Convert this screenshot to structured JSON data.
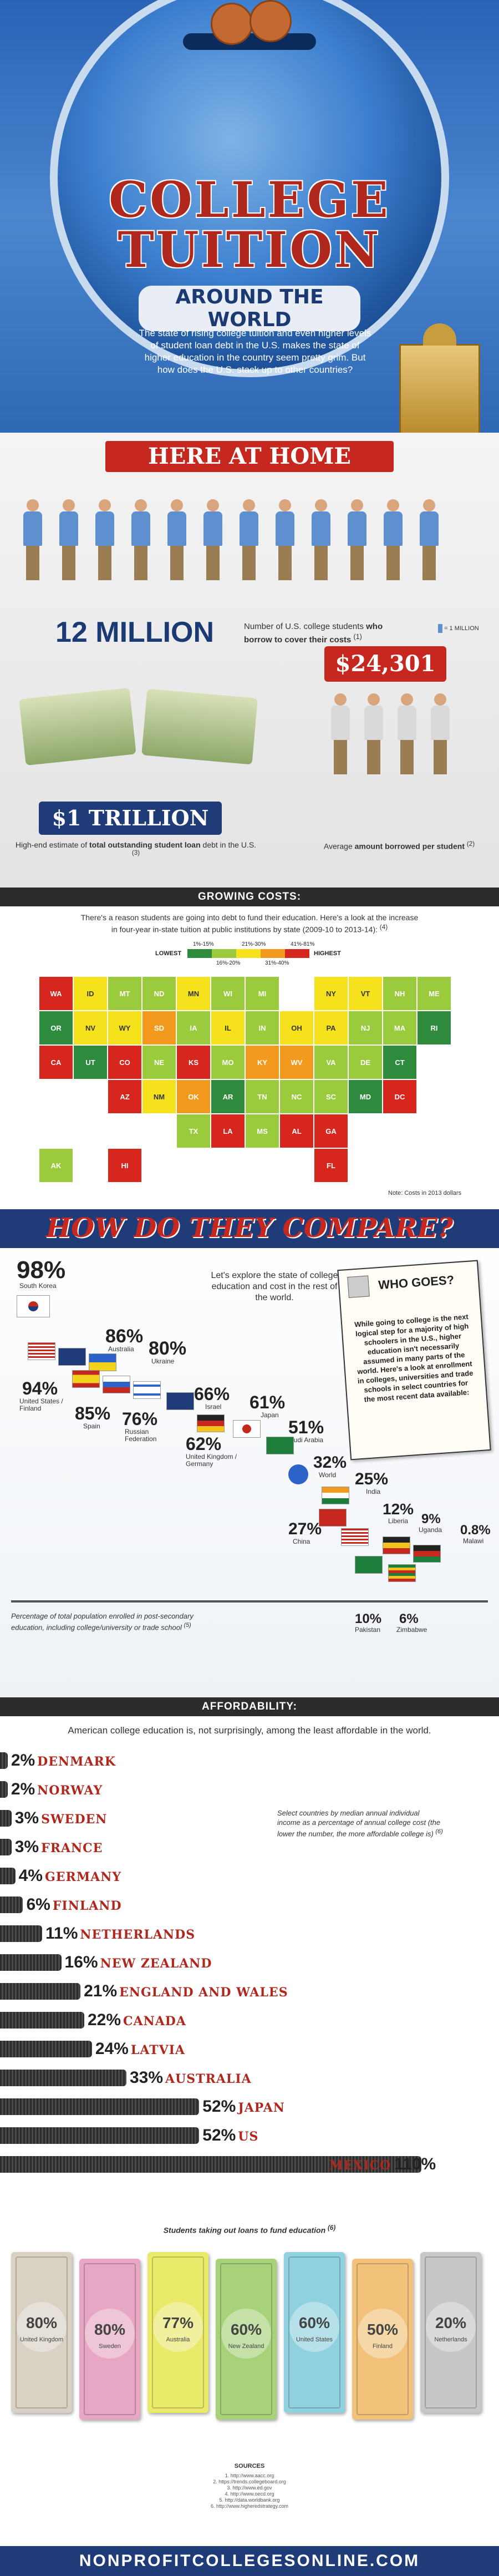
{
  "header": {
    "title_line1": "COLLEGE",
    "title_line2": "TUITION",
    "title_line3": "AROUND THE WORLD",
    "intro": "The state of rising college tuition and even higher levels of student loan debt in the U.S. makes the state of higher education in the country seem pretty grim. But how does the U.S. stack up to other countries?"
  },
  "home": {
    "banner": "HERE AT HOME",
    "students_value": "12 MILLION",
    "students_desc_pre": "Number of U.S. college students ",
    "students_desc_bold": "who borrow to cover their costs",
    "students_note": "(1)",
    "legend": "= 1 MILLION",
    "avg_value": "$24,301",
    "avg_desc_pre": "Average ",
    "avg_desc_bold": "amount borrowed per student",
    "avg_note": "(2)",
    "debt_value": "$1 TRILLION",
    "debt_desc_pre": "High-end estimate of ",
    "debt_desc_bold": "total outstanding student loan",
    "debt_desc_post": " debt in the U.S.",
    "debt_note": "(3)"
  },
  "growing": {
    "heading": "GROWING COSTS:",
    "intro": "There's a reason students are going into debt to fund their education. Here's a look at the increase in four-year in-state tuition at public institutions by state (2009-10 to 2013-14):",
    "intro_note": "(4)",
    "legend_lowest": "LOWEST",
    "legend_highest": "HIGHEST",
    "legend_top": [
      "1%-15%",
      "21%-30%",
      "41%-81%"
    ],
    "legend_bottom": [
      "16%-20%",
      "31%-40%"
    ],
    "legend_colors": [
      "#2e8b3e",
      "#9acb3c",
      "#f5e21c",
      "#f39a1e",
      "#d7261e"
    ],
    "note": "Note: Costs in 2013 dollars",
    "states": [
      "WA",
      "OR",
      "CA",
      "NV",
      "ID",
      "MT",
      "WY",
      "UT",
      "AZ",
      "CO",
      "NM",
      "ND",
      "SD",
      "NE",
      "KS",
      "OK",
      "TX",
      "MN",
      "IA",
      "MO",
      "AR",
      "LA",
      "WI",
      "IL",
      "MI",
      "IN",
      "OH",
      "KY",
      "TN",
      "MS",
      "AL",
      "GA",
      "FL",
      "SC",
      "NC",
      "VA",
      "WV",
      "PA",
      "NY",
      "VT",
      "NH",
      "ME",
      "MA",
      "RI",
      "CT",
      "NJ",
      "DE",
      "MD",
      "DC",
      "AK",
      "HI"
    ]
  },
  "compare": {
    "heading": "HOW DO THEY COMPARE?",
    "intro": "Let's explore the state of college education and cost in the rest of the world.",
    "who_goes_title": "WHO GOES?",
    "who_goes_text": "While going to college is the next logical step for a majority of high schoolers in the U.S., higher education isn't necessarily assumed in many parts of the world. Here's a look at enrollment in colleges, universities and trade schools in select countries for the most recent data available:",
    "countries": [
      {
        "pct": "98%",
        "name": "South Korea"
      },
      {
        "pct": "86%",
        "name": "Australia"
      },
      {
        "pct": "80%",
        "name": "Ukraine"
      },
      {
        "pct": "94%",
        "name": "United States / Finland"
      },
      {
        "pct": "85%",
        "name": "Spain"
      },
      {
        "pct": "76%",
        "name": "Russian Federation"
      },
      {
        "pct": "66%",
        "name": "Israel"
      },
      {
        "pct": "62%",
        "name": "United Kingdom / Germany"
      },
      {
        "pct": "61%",
        "name": "Japan"
      },
      {
        "pct": "51%",
        "name": "Saudi Arabia"
      },
      {
        "pct": "32%",
        "name": "World"
      },
      {
        "pct": "25%",
        "name": "India"
      },
      {
        "pct": "27%",
        "name": "China"
      },
      {
        "pct": "12%",
        "name": "Liberia"
      },
      {
        "pct": "9%",
        "name": "Uganda"
      },
      {
        "pct": "0.8%",
        "name": "Malawi"
      },
      {
        "pct": "10%",
        "name": "Pakistan"
      },
      {
        "pct": "6%",
        "name": "Zimbabwe"
      }
    ],
    "footnote": "Percentage of total population enrolled in post-secondary education, including college/university or trade school",
    "footnote_note": "(5)"
  },
  "afford": {
    "heading": "AFFORDABILITY:",
    "intro": "American college education is, not surprisingly, among the least affordable in the world.",
    "note": "Select countries by median annual individual income as a percentage of annual college cost (the lower the number, the more affordable college is)",
    "note_ref": "(6)",
    "rows": [
      {
        "pct": "2%",
        "country": "DENMARK"
      },
      {
        "pct": "2%",
        "country": "NORWAY"
      },
      {
        "pct": "3%",
        "country": "SWEDEN"
      },
      {
        "pct": "3%",
        "country": "FRANCE"
      },
      {
        "pct": "4%",
        "country": "GERMANY"
      },
      {
        "pct": "6%",
        "country": "FINLAND"
      },
      {
        "pct": "11%",
        "country": "NETHERLANDS"
      },
      {
        "pct": "16%",
        "country": "NEW ZEALAND"
      },
      {
        "pct": "21%",
        "country": "ENGLAND AND WALES"
      },
      {
        "pct": "22%",
        "country": "CANADA"
      },
      {
        "pct": "24%",
        "country": "LATVIA"
      },
      {
        "pct": "33%",
        "country": "AUSTRALIA"
      },
      {
        "pct": "52%",
        "country": "JAPAN"
      },
      {
        "pct": "52%",
        "country": "US"
      },
      {
        "pct": "110%",
        "country": "MEXICO"
      }
    ],
    "chart_data": {
      "type": "bar",
      "categories": [
        "DENMARK",
        "NORWAY",
        "SWEDEN",
        "FRANCE",
        "GERMANY",
        "FINLAND",
        "NETHERLANDS",
        "NEW ZEALAND",
        "ENGLAND AND WALES",
        "CANADA",
        "LATVIA",
        "AUSTRALIA",
        "JAPAN",
        "US",
        "MEXICO"
      ],
      "values": [
        2,
        2,
        3,
        3,
        4,
        6,
        11,
        16,
        21,
        22,
        24,
        33,
        52,
        52,
        110
      ],
      "title": "AFFORDABILITY:",
      "xlabel": "",
      "ylabel": ""
    }
  },
  "loans": {
    "title": "Students taking out loans to fund education",
    "title_note": "(6)",
    "bills": [
      {
        "pct": "80%",
        "country": "United Kingdom",
        "color": "#d9d2c4"
      },
      {
        "pct": "80%",
        "country": "Sweden",
        "color": "#e7a7c4"
      },
      {
        "pct": "77%",
        "country": "Australia",
        "color": "#e9e96a"
      },
      {
        "pct": "60%",
        "country": "New Zealand",
        "color": "#a8d27a"
      },
      {
        "pct": "60%",
        "country": "United States",
        "color": "#8fd1df"
      },
      {
        "pct": "50%",
        "country": "Finland",
        "color": "#f2c27a"
      },
      {
        "pct": "20%",
        "country": "Netherlands",
        "color": "#c7c7c7"
      }
    ],
    "sources_title": "SOURCES",
    "sources": [
      "1. http://www.aacc.org",
      "2. https://trends.collegeboard.org",
      "3. http://www.ed.gov",
      "4. http://www.oecd.org",
      "5. http://data.worldbank.org",
      "6. http://www.higheredstrategy.com"
    ],
    "footer": "NONPROFITCOLLEGESONLINE.COM"
  }
}
